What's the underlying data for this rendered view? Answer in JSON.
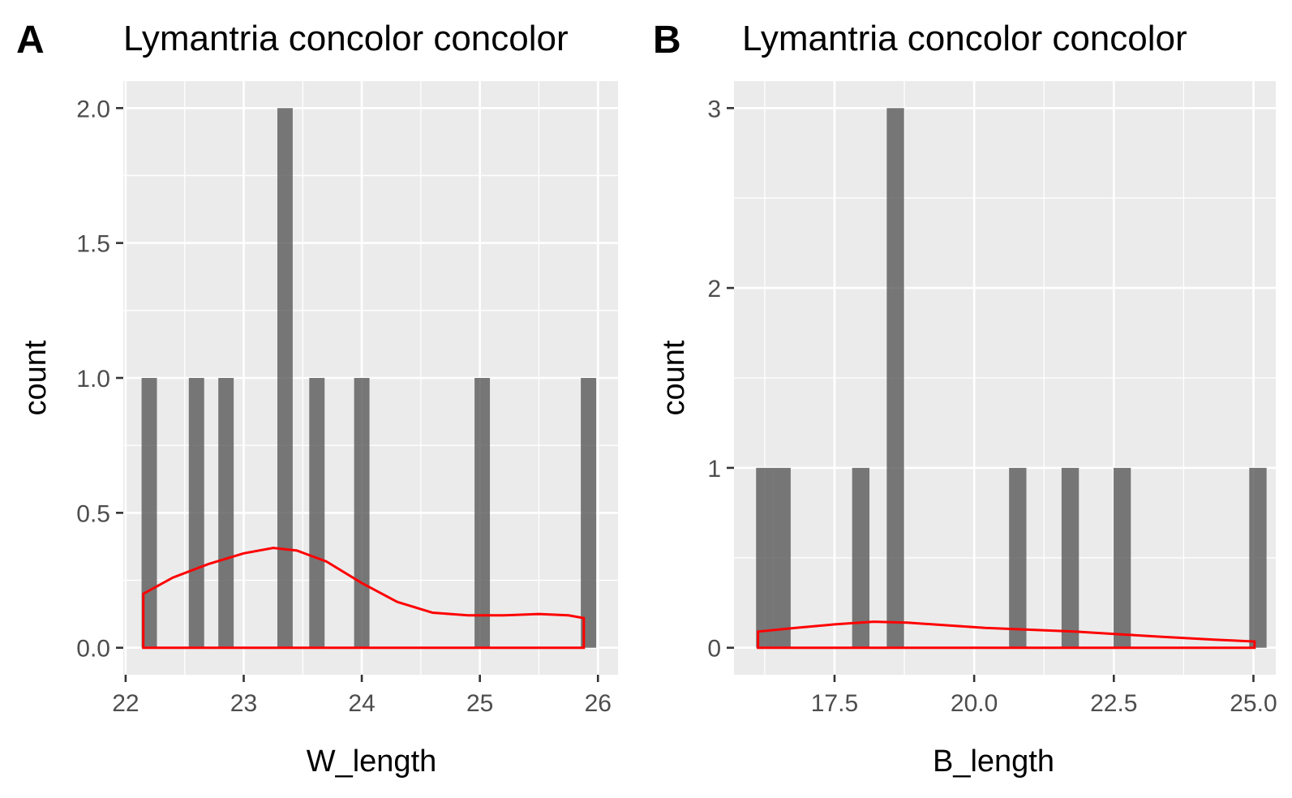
{
  "chart_data": [
    {
      "type": "bar",
      "panel_label": "A",
      "title": "Lymantria concolor concolor",
      "xlabel": "W_length",
      "ylabel": "count",
      "xlim": [
        21.98,
        26.17
      ],
      "ylim": [
        -0.1,
        2.1
      ],
      "x_ticks": [
        22,
        23,
        24,
        25,
        26
      ],
      "y_ticks": [
        0.0,
        0.5,
        1.0,
        1.5,
        2.0
      ],
      "y_tick_labels": [
        "0.0",
        "0.5",
        "1.0",
        "1.5",
        "2.0"
      ],
      "x_tick_labels": [
        "22",
        "23",
        "24",
        "25",
        "26"
      ],
      "bin_width": 0.13,
      "bars": [
        {
          "x": 22.2,
          "count": 1
        },
        {
          "x": 22.6,
          "count": 1
        },
        {
          "x": 22.85,
          "count": 1
        },
        {
          "x": 23.35,
          "count": 2
        },
        {
          "x": 23.62,
          "count": 1
        },
        {
          "x": 24.0,
          "count": 1
        },
        {
          "x": 25.02,
          "count": 1
        },
        {
          "x": 25.92,
          "count": 1
        }
      ],
      "density": [
        [
          22.15,
          0.2
        ],
        [
          22.4,
          0.26
        ],
        [
          22.7,
          0.31
        ],
        [
          23.0,
          0.35
        ],
        [
          23.25,
          0.37
        ],
        [
          23.45,
          0.36
        ],
        [
          23.7,
          0.32
        ],
        [
          24.0,
          0.24
        ],
        [
          24.3,
          0.17
        ],
        [
          24.6,
          0.13
        ],
        [
          24.9,
          0.12
        ],
        [
          25.2,
          0.12
        ],
        [
          25.5,
          0.125
        ],
        [
          25.75,
          0.12
        ],
        [
          25.88,
          0.11
        ]
      ],
      "grid": true,
      "colors": {
        "bars": "#595959",
        "density": "#ff0000",
        "panel_bg": "#ebebeb"
      }
    },
    {
      "type": "bar",
      "panel_label": "B",
      "title": "Lymantria concolor concolor",
      "xlabel": "B_length",
      "ylabel": "count",
      "xlim": [
        15.7,
        25.4
      ],
      "ylim": [
        -0.15,
        3.15
      ],
      "x_ticks": [
        17.5,
        20.0,
        22.5,
        25.0
      ],
      "y_ticks": [
        0,
        1,
        2,
        3
      ],
      "x_tick_labels": [
        "17.5",
        "20.0",
        "22.5",
        "25.0"
      ],
      "y_tick_labels": [
        "0",
        "1",
        "2",
        "3"
      ],
      "bin_width": 0.31,
      "bars": [
        {
          "x": 16.25,
          "count": 1
        },
        {
          "x": 16.56,
          "count": 1
        },
        {
          "x": 17.97,
          "count": 1
        },
        {
          "x": 18.59,
          "count": 3
        },
        {
          "x": 20.78,
          "count": 1
        },
        {
          "x": 21.72,
          "count": 1
        },
        {
          "x": 22.65,
          "count": 1
        },
        {
          "x": 25.08,
          "count": 1
        }
      ],
      "density": [
        [
          16.13,
          0.09
        ],
        [
          16.8,
          0.11
        ],
        [
          17.5,
          0.13
        ],
        [
          18.2,
          0.145
        ],
        [
          18.8,
          0.14
        ],
        [
          19.5,
          0.125
        ],
        [
          20.2,
          0.11
        ],
        [
          21.0,
          0.1
        ],
        [
          21.8,
          0.09
        ],
        [
          22.6,
          0.075
        ],
        [
          23.4,
          0.06
        ],
        [
          24.3,
          0.045
        ],
        [
          25.02,
          0.035
        ]
      ],
      "grid": true,
      "colors": {
        "bars": "#595959",
        "density": "#ff0000",
        "panel_bg": "#ebebeb"
      }
    }
  ]
}
